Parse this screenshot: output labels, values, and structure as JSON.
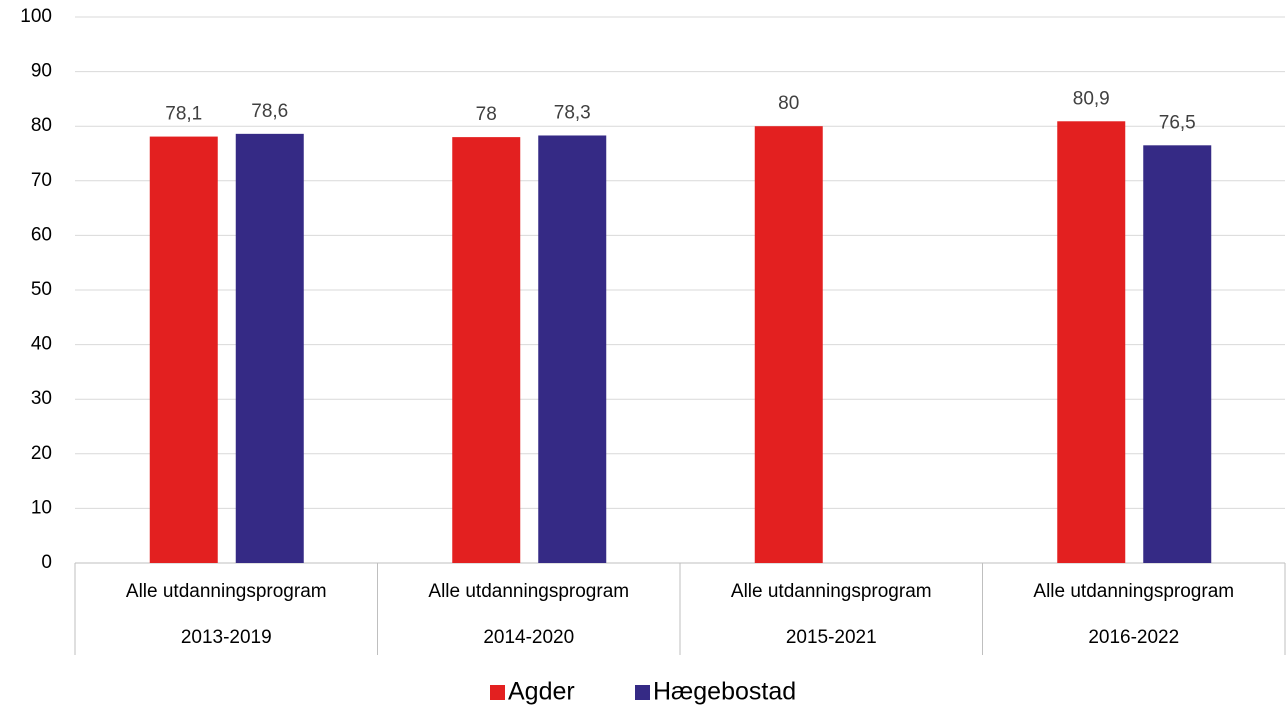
{
  "chart_data": {
    "type": "bar",
    "categories": [
      "2013-2019",
      "2014-2020",
      "2015-2021",
      "2016-2022"
    ],
    "subcategories": [
      "Alle utdanningsprogram",
      "Alle utdanningsprogram",
      "Alle utdanningsprogram",
      "Alle utdanningsprogram"
    ],
    "series": [
      {
        "name": "Agder",
        "color": "#e32020",
        "values": [
          78.1,
          78,
          80,
          80.9
        ],
        "value_labels": [
          "78,1",
          "78",
          "80",
          "80,9"
        ]
      },
      {
        "name": "Hægebostad",
        "color": "#352a85",
        "values": [
          78.6,
          78.3,
          null,
          76.5
        ],
        "value_labels": [
          "78,6",
          "78,3",
          null,
          "76,5"
        ]
      }
    ],
    "ylim": [
      0,
      100
    ],
    "yticks": [
      0,
      10,
      20,
      30,
      40,
      50,
      60,
      70,
      80,
      90,
      100
    ],
    "grid": true,
    "legend": "bottom"
  }
}
